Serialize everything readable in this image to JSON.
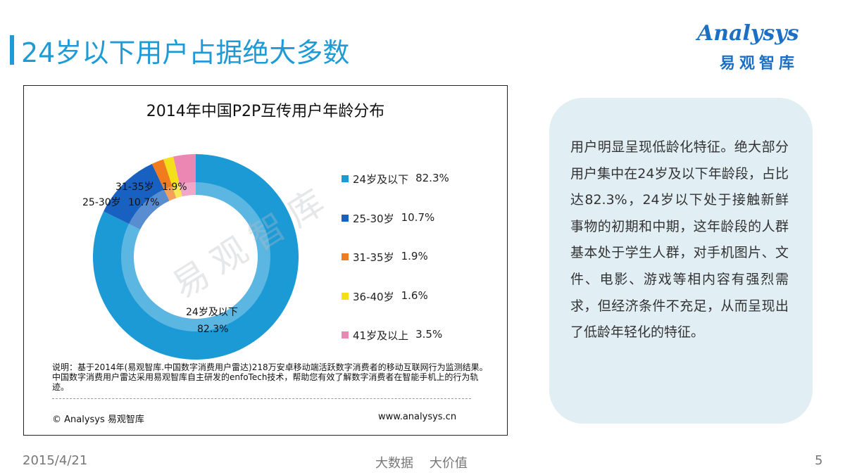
{
  "page": {
    "title": "24岁以下用户占据绝大多数",
    "logo_en": "Analysys",
    "logo_cn": "易观智库",
    "watermark": "易观智库"
  },
  "chart_data": {
    "type": "pie",
    "title": "2014年中国P2P互传用户年龄分布",
    "categories": [
      "24岁及以下",
      "25-30岁",
      "31-35岁",
      "36-40岁",
      "41岁及以上"
    ],
    "values": [
      82.3,
      10.7,
      1.9,
      1.6,
      3.5
    ],
    "value_labels": [
      "82.3%",
      "10.7%",
      "1.9%",
      "1.6%",
      "3.5%"
    ],
    "colors": [
      "#1c9ad6",
      "#1861c0",
      "#f07c1e",
      "#f4e01a",
      "#ec87b3"
    ],
    "donut": true,
    "legend_position": "right",
    "data_labels": [
      {
        "category": "24岁及以下",
        "value": "82.3%"
      },
      {
        "category": "25-30岁",
        "value": "10.7%"
      },
      {
        "category": "31-35岁",
        "value": "1.9%"
      }
    ]
  },
  "note": "说明：基于2014年(易观智库.中国数字消费用户雷达)218万安卓移动端活跃数字消费者的移动互联网行为监测结果。中国数字消费用户雷达采用易观智库自主研发的enfoTech技术，帮助您有效了解数字消费者在智能手机上的行为轨迹。",
  "copyright": "© Analysys 易观智库",
  "website": "www.analysys.cn",
  "callout": "用户明显呈现低龄化特征。绝大部分用户集中在24岁及以下年龄段，占比达82.3%，24岁以下处于接触新鲜事物的初期和中期，这年龄段的人群基本处于学生人群，对手机图片、文件、电影、游戏等相内容有强烈需求，但经济条件不充足，从而呈现出了低龄年轻化的特征。",
  "footer": {
    "date": "2015/4/21",
    "center": "大数据    大价值",
    "page": "5"
  }
}
